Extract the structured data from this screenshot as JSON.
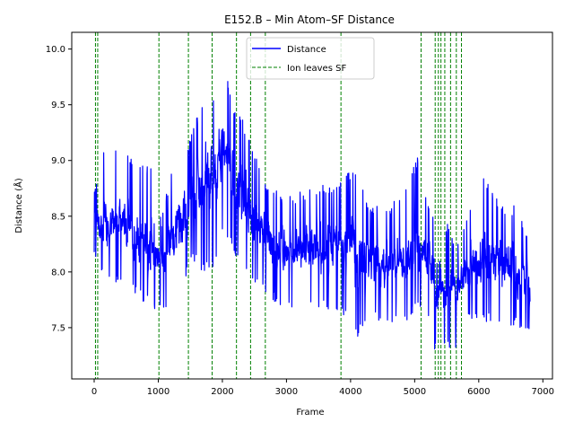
{
  "chart_data": {
    "type": "line",
    "title": "E152.B – Min Atom–SF Distance",
    "xlabel": "Frame",
    "ylabel": "Distance (Å)",
    "xlim": [
      -350,
      7150
    ],
    "ylim": [
      7.04,
      10.15
    ],
    "xticks": [
      0,
      1000,
      2000,
      3000,
      4000,
      5000,
      6000,
      7000
    ],
    "xtick_labels": [
      "0",
      "1000",
      "2000",
      "3000",
      "4000",
      "5000",
      "6000",
      "7000"
    ],
    "yticks": [
      7.5,
      8.0,
      8.5,
      9.0,
      9.5,
      10.0
    ],
    "ytick_labels": [
      "7.5",
      "8.0",
      "8.5",
      "9.0",
      "9.5",
      "10.0"
    ],
    "grid": false,
    "legend_placement": "top-center",
    "series": [
      {
        "name": "Distance",
        "color": "#0000ff",
        "style": "solid",
        "frame_count": 6800,
        "envelope": [
          {
            "x": 0,
            "low": 8.1,
            "high": 8.8,
            "mean": 8.45
          },
          {
            "x": 150,
            "low": 7.9,
            "high": 9.1,
            "mean": 8.45
          },
          {
            "x": 300,
            "low": 7.9,
            "high": 9.2,
            "mean": 8.45
          },
          {
            "x": 500,
            "low": 7.9,
            "high": 9.1,
            "mean": 8.45
          },
          {
            "x": 700,
            "low": 7.75,
            "high": 8.95,
            "mean": 8.3
          },
          {
            "x": 900,
            "low": 7.7,
            "high": 8.95,
            "mean": 8.25
          },
          {
            "x": 1050,
            "low": 7.6,
            "high": 8.5,
            "mean": 8.1
          },
          {
            "x": 1200,
            "low": 7.75,
            "high": 8.9,
            "mean": 8.3
          },
          {
            "x": 1400,
            "low": 7.9,
            "high": 9.05,
            "mean": 8.45
          },
          {
            "x": 1550,
            "low": 8.1,
            "high": 9.3,
            "mean": 8.7
          },
          {
            "x": 1700,
            "low": 8.0,
            "high": 9.6,
            "mean": 8.8
          },
          {
            "x": 1850,
            "low": 8.0,
            "high": 9.6,
            "mean": 8.85
          },
          {
            "x": 2000,
            "low": 8.3,
            "high": 10.0,
            "mean": 9.1
          },
          {
            "x": 2150,
            "low": 8.2,
            "high": 9.5,
            "mean": 8.9
          },
          {
            "x": 2300,
            "low": 8.0,
            "high": 9.4,
            "mean": 8.7
          },
          {
            "x": 2500,
            "low": 7.9,
            "high": 9.1,
            "mean": 8.5
          },
          {
            "x": 2700,
            "low": 7.75,
            "high": 8.8,
            "mean": 8.3
          },
          {
            "x": 2900,
            "low": 7.7,
            "high": 8.7,
            "mean": 8.2
          },
          {
            "x": 3100,
            "low": 7.65,
            "high": 8.7,
            "mean": 8.15
          },
          {
            "x": 3400,
            "low": 7.7,
            "high": 8.75,
            "mean": 8.2
          },
          {
            "x": 3700,
            "low": 7.65,
            "high": 8.8,
            "mean": 8.2
          },
          {
            "x": 3900,
            "low": 7.6,
            "high": 8.9,
            "mean": 8.25
          },
          {
            "x": 4100,
            "low": 7.4,
            "high": 8.9,
            "mean": 8.2
          },
          {
            "x": 4300,
            "low": 7.55,
            "high": 8.6,
            "mean": 8.1
          },
          {
            "x": 4600,
            "low": 7.55,
            "high": 8.6,
            "mean": 8.05
          },
          {
            "x": 4900,
            "low": 7.55,
            "high": 8.8,
            "mean": 8.1
          },
          {
            "x": 5050,
            "low": 7.7,
            "high": 9.05,
            "mean": 8.25
          },
          {
            "x": 5200,
            "low": 7.6,
            "high": 8.7,
            "mean": 8.1
          },
          {
            "x": 5350,
            "low": 7.2,
            "high": 8.4,
            "mean": 7.9
          },
          {
            "x": 5500,
            "low": 7.3,
            "high": 8.45,
            "mean": 7.85
          },
          {
            "x": 5650,
            "low": 7.25,
            "high": 8.3,
            "mean": 7.8
          },
          {
            "x": 5800,
            "low": 7.55,
            "high": 8.5,
            "mean": 8.0
          },
          {
            "x": 6000,
            "low": 7.55,
            "high": 8.9,
            "mean": 8.15
          },
          {
            "x": 6200,
            "low": 7.55,
            "high": 8.75,
            "mean": 8.1
          },
          {
            "x": 6400,
            "low": 7.5,
            "high": 8.6,
            "mean": 8.05
          },
          {
            "x": 6600,
            "low": 7.5,
            "high": 8.6,
            "mean": 8.0
          },
          {
            "x": 6800,
            "low": 7.45,
            "high": 8.25,
            "mean": 7.85
          }
        ]
      },
      {
        "name": "Ion leaves SF",
        "color": "#008000",
        "style": "dashed",
        "x_positions": [
          20,
          55,
          1010,
          1470,
          1840,
          2220,
          2440,
          2670,
          3850,
          5100,
          5320,
          5370,
          5410,
          5470,
          5560,
          5650,
          5730
        ]
      }
    ]
  }
}
